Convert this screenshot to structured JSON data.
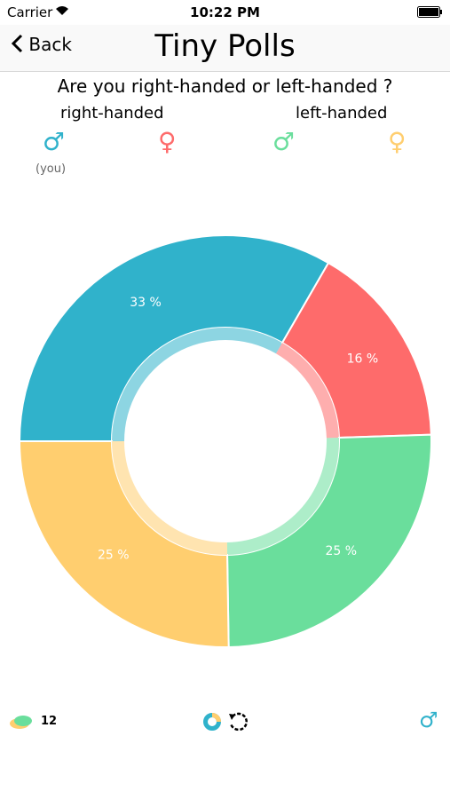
{
  "status_bar": {
    "carrier": "Carrier",
    "time": "10:22 PM"
  },
  "nav": {
    "back": "Back",
    "title": "Tiny Polls"
  },
  "question": "Are you right-handed or left-handed ?",
  "legend": [
    {
      "label": "right-handed",
      "symbols": [
        {
          "symbol": "♂",
          "color": "#30b2cb",
          "note": "(you)"
        },
        {
          "symbol": "♀",
          "color": "#fe6b6b"
        }
      ]
    },
    {
      "label": "left-handed",
      "symbols": [
        {
          "symbol": "♂",
          "color": "#6ade9c"
        },
        {
          "symbol": "♀",
          "color": "#ffce6f"
        }
      ]
    }
  ],
  "chart_data": {
    "type": "donut",
    "values": [
      33,
      16,
      25,
      25
    ],
    "value_labels": [
      "33 %",
      "16 %",
      "25 %",
      "25 %"
    ],
    "colors": [
      "#30b2cb",
      "#fe6b6b",
      "#6ade9c",
      "#ffce6f"
    ]
  },
  "footer": {
    "comments": "12",
    "filter_symbol": "♂"
  }
}
